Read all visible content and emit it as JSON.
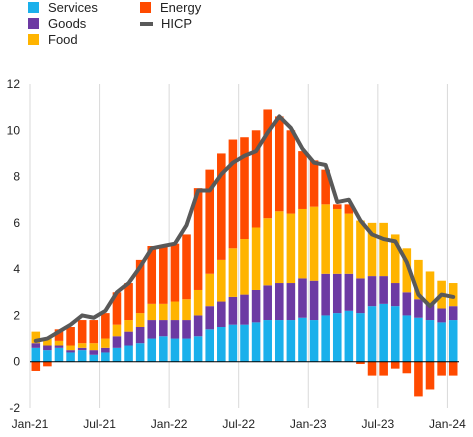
{
  "chart_data": {
    "type": "bar",
    "stacked": true,
    "legend": [
      {
        "name": "Services",
        "color": "#1ab0eb",
        "kind": "bar"
      },
      {
        "name": "Goods",
        "color": "#6c3aa3",
        "kind": "bar"
      },
      {
        "name": "Food",
        "color": "#ffb400",
        "kind": "bar"
      },
      {
        "name": "Energy",
        "color": "#ff4a00",
        "kind": "bar"
      },
      {
        "name": "HICP",
        "color": "#595959",
        "kind": "line"
      }
    ],
    "ylim": [
      -2,
      12
    ],
    "yticks": [
      -2,
      0,
      2,
      4,
      6,
      8,
      10,
      12
    ],
    "x_tick_labels": [
      "Jan-21",
      "Jul-21",
      "Jan-22",
      "Jul-22",
      "Jan-23",
      "Jul-23",
      "Jan-24"
    ],
    "x_tick_month_index": [
      0,
      6,
      12,
      18,
      24,
      30,
      36
    ],
    "grid": "vertical",
    "categories": [
      "Jan-21",
      "Feb-21",
      "Mar-21",
      "Apr-21",
      "May-21",
      "Jun-21",
      "Jul-21",
      "Aug-21",
      "Sep-21",
      "Oct-21",
      "Nov-21",
      "Dec-21",
      "Jan-22",
      "Feb-22",
      "Mar-22",
      "Apr-22",
      "May-22",
      "Jun-22",
      "Jul-22",
      "Aug-22",
      "Sep-22",
      "Oct-22",
      "Nov-22",
      "Dec-22",
      "Jan-23",
      "Feb-23",
      "Mar-23",
      "Apr-23",
      "May-23",
      "Jun-23",
      "Jul-23",
      "Aug-23",
      "Sep-23",
      "Oct-23",
      "Nov-23",
      "Dec-23",
      "Jan-24"
    ],
    "series": [
      {
        "name": "Services",
        "values": [
          0.6,
          0.5,
          0.6,
          0.4,
          0.5,
          0.3,
          0.4,
          0.6,
          0.7,
          0.8,
          1.0,
          1.1,
          1.0,
          1.0,
          1.1,
          1.4,
          1.5,
          1.6,
          1.6,
          1.7,
          1.8,
          1.8,
          1.8,
          1.9,
          1.8,
          2.0,
          2.1,
          2.2,
          2.1,
          2.4,
          2.5,
          2.4,
          2.0,
          1.9,
          1.8,
          1.7,
          1.8
        ]
      },
      {
        "name": "Goods",
        "values": [
          0.2,
          0.2,
          0.1,
          0.1,
          0.1,
          0.2,
          0.2,
          0.5,
          0.6,
          0.7,
          0.8,
          0.7,
          0.8,
          0.8,
          0.9,
          1.0,
          1.1,
          1.2,
          1.3,
          1.4,
          1.5,
          1.6,
          1.6,
          1.7,
          1.7,
          1.8,
          1.7,
          1.6,
          1.5,
          1.3,
          1.2,
          1.0,
          1.0,
          0.8,
          0.7,
          0.6,
          0.6
        ]
      },
      {
        "name": "Food",
        "values": [
          0.5,
          0.3,
          0.2,
          0.2,
          0.2,
          0.3,
          0.4,
          0.5,
          0.5,
          0.6,
          0.7,
          0.7,
          0.8,
          0.9,
          1.1,
          1.4,
          1.8,
          2.1,
          2.4,
          2.7,
          2.9,
          3.1,
          3.0,
          3.0,
          3.2,
          3.0,
          2.8,
          2.6,
          2.5,
          2.3,
          2.3,
          2.1,
          1.9,
          1.7,
          1.4,
          1.2,
          1.0
        ]
      },
      {
        "name": "Energy",
        "values": [
          -0.4,
          -0.2,
          0.5,
          0.8,
          1.0,
          1.0,
          1.1,
          1.4,
          1.6,
          2.3,
          2.5,
          2.5,
          2.5,
          2.8,
          4.4,
          4.5,
          4.6,
          4.7,
          4.4,
          4.2,
          4.7,
          4.1,
          3.6,
          2.5,
          2.0,
          1.5,
          0.2,
          0.4,
          -0.1,
          -0.6,
          -0.6,
          -0.3,
          -0.5,
          -1.5,
          -1.2,
          -0.6,
          -0.6
        ]
      }
    ],
    "hicp": [
      0.9,
      1.0,
      1.3,
      1.6,
      2.0,
      1.9,
      2.2,
      3.0,
      3.4,
      4.1,
      4.9,
      5.0,
      5.1,
      5.9,
      7.4,
      7.4,
      8.1,
      8.6,
      8.9,
      9.1,
      9.9,
      10.6,
      10.1,
      9.2,
      8.6,
      8.5,
      6.9,
      7.0,
      6.1,
      5.5,
      5.3,
      5.2,
      4.3,
      2.9,
      2.4,
      2.9,
      2.8
    ]
  }
}
